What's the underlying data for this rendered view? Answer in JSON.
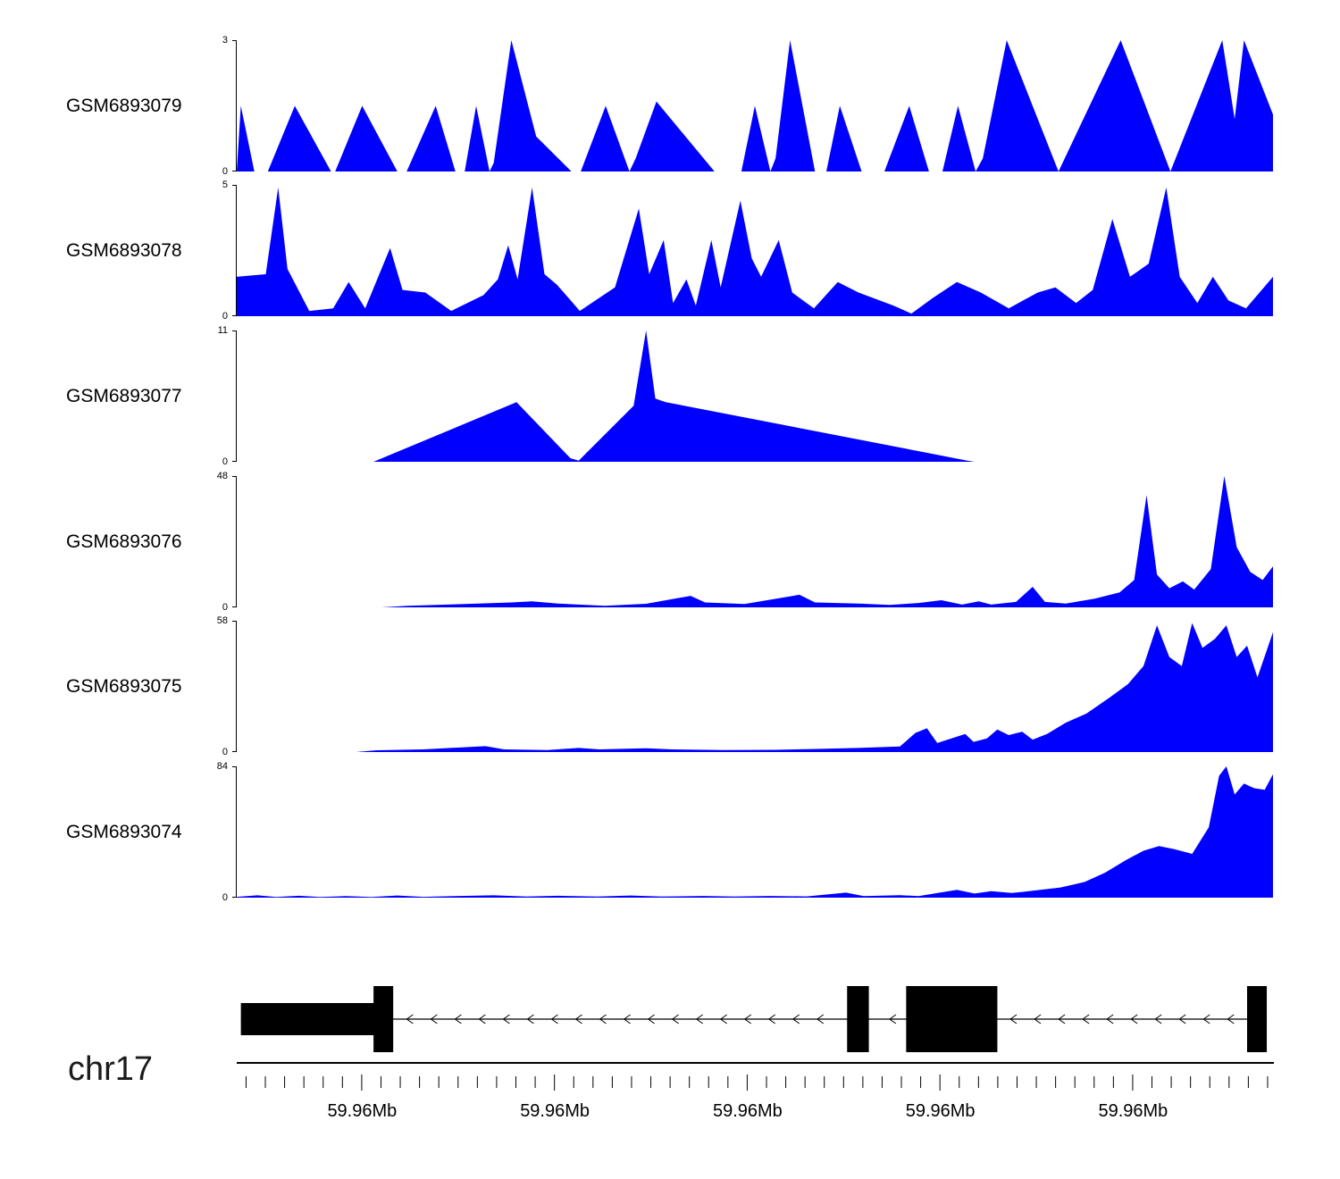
{
  "figure": {
    "chromosome_label": "chr17",
    "background": "#ffffff",
    "coverage_color": "#0000ff",
    "gene_color": "#000000"
  },
  "chart_data": {
    "type": "area",
    "description": "Genome browser read-coverage tracks with gene model and genome axis",
    "chromosome": "chr17",
    "legend_position": "none",
    "grid": false,
    "tracks": [
      {
        "label": "GSM6893079",
        "ylim": [
          0,
          3
        ],
        "points": [
          [
            0.0,
            0
          ],
          [
            0.004,
            1.5
          ],
          [
            0.017,
            0
          ],
          [
            0.03,
            0
          ],
          [
            0.056,
            1.5
          ],
          [
            0.091,
            0
          ],
          [
            0.095,
            0
          ],
          [
            0.121,
            1.5
          ],
          [
            0.155,
            0
          ],
          [
            0.164,
            0
          ],
          [
            0.192,
            1.5
          ],
          [
            0.211,
            0
          ],
          [
            0.22,
            0
          ],
          [
            0.231,
            1.5
          ],
          [
            0.244,
            0
          ],
          [
            0.248,
            0.2
          ],
          [
            0.265,
            3
          ],
          [
            0.289,
            0.8
          ],
          [
            0.323,
            0
          ],
          [
            0.332,
            0
          ],
          [
            0.356,
            1.5
          ],
          [
            0.379,
            0
          ],
          [
            0.385,
            0.3
          ],
          [
            0.405,
            1.6
          ],
          [
            0.461,
            0
          ],
          [
            0.487,
            0
          ],
          [
            0.5,
            1.5
          ],
          [
            0.515,
            0
          ],
          [
            0.52,
            0.3
          ],
          [
            0.534,
            3
          ],
          [
            0.558,
            0
          ],
          [
            0.569,
            0
          ],
          [
            0.582,
            1.5
          ],
          [
            0.603,
            0
          ],
          [
            0.625,
            0
          ],
          [
            0.649,
            1.5
          ],
          [
            0.668,
            0
          ],
          [
            0.681,
            0
          ],
          [
            0.696,
            1.5
          ],
          [
            0.713,
            0
          ],
          [
            0.72,
            0.3
          ],
          [
            0.743,
            3
          ],
          [
            0.793,
            0
          ],
          [
            0.797,
            0.2
          ],
          [
            0.853,
            3
          ],
          [
            0.901,
            0
          ],
          [
            0.951,
            3
          ],
          [
            0.963,
            1.2
          ],
          [
            0.972,
            3
          ],
          [
            1.0,
            1.3
          ]
        ]
      },
      {
        "label": "GSM6893078",
        "ylim": [
          0,
          5
        ],
        "points": [
          [
            0.0,
            1.5
          ],
          [
            0.028,
            1.6
          ],
          [
            0.04,
            4.9
          ],
          [
            0.049,
            1.8
          ],
          [
            0.07,
            0.2
          ],
          [
            0.093,
            0.3
          ],
          [
            0.108,
            1.3
          ],
          [
            0.124,
            0.3
          ],
          [
            0.148,
            2.6
          ],
          [
            0.16,
            1.0
          ],
          [
            0.182,
            0.9
          ],
          [
            0.207,
            0.2
          ],
          [
            0.238,
            0.8
          ],
          [
            0.252,
            1.4
          ],
          [
            0.262,
            2.7
          ],
          [
            0.271,
            1.4
          ],
          [
            0.285,
            4.9
          ],
          [
            0.297,
            1.6
          ],
          [
            0.309,
            1.2
          ],
          [
            0.331,
            0.2
          ],
          [
            0.365,
            1.1
          ],
          [
            0.388,
            4.1
          ],
          [
            0.398,
            1.6
          ],
          [
            0.412,
            2.9
          ],
          [
            0.421,
            0.5
          ],
          [
            0.434,
            1.4
          ],
          [
            0.443,
            0.4
          ],
          [
            0.458,
            2.9
          ],
          [
            0.467,
            1.1
          ],
          [
            0.486,
            4.4
          ],
          [
            0.497,
            2.2
          ],
          [
            0.506,
            1.5
          ],
          [
            0.523,
            2.9
          ],
          [
            0.536,
            0.9
          ],
          [
            0.557,
            0.3
          ],
          [
            0.58,
            1.3
          ],
          [
            0.6,
            0.9
          ],
          [
            0.634,
            0.4
          ],
          [
            0.651,
            0.1
          ],
          [
            0.672,
            0.7
          ],
          [
            0.695,
            1.3
          ],
          [
            0.718,
            0.9
          ],
          [
            0.745,
            0.3
          ],
          [
            0.773,
            0.9
          ],
          [
            0.79,
            1.1
          ],
          [
            0.81,
            0.5
          ],
          [
            0.826,
            1.0
          ],
          [
            0.845,
            3.7
          ],
          [
            0.862,
            1.5
          ],
          [
            0.88,
            2.0
          ],
          [
            0.897,
            4.9
          ],
          [
            0.91,
            1.5
          ],
          [
            0.927,
            0.5
          ],
          [
            0.942,
            1.5
          ],
          [
            0.957,
            0.6
          ],
          [
            0.974,
            0.3
          ],
          [
            1.0,
            1.5
          ]
        ]
      },
      {
        "label": "GSM6893077",
        "ylim": [
          0,
          11
        ],
        "points": [
          [
            0.0,
            0
          ],
          [
            0.132,
            0
          ],
          [
            0.27,
            5.0
          ],
          [
            0.322,
            0.3
          ],
          [
            0.33,
            0.1
          ],
          [
            0.383,
            4.7
          ],
          [
            0.395,
            11
          ],
          [
            0.404,
            5.3
          ],
          [
            0.414,
            5.0
          ],
          [
            0.705,
            0.1
          ],
          [
            0.712,
            0
          ],
          [
            1.0,
            0
          ]
        ]
      },
      {
        "label": "GSM6893076",
        "ylim": [
          0,
          48
        ],
        "points": [
          [
            0.0,
            0
          ],
          [
            0.14,
            0
          ],
          [
            0.165,
            0.6
          ],
          [
            0.22,
            1.2
          ],
          [
            0.265,
            1.8
          ],
          [
            0.285,
            2.2
          ],
          [
            0.31,
            1.4
          ],
          [
            0.355,
            0.6
          ],
          [
            0.395,
            1.3
          ],
          [
            0.438,
            4.2
          ],
          [
            0.452,
            1.8
          ],
          [
            0.49,
            1.2
          ],
          [
            0.543,
            4.6
          ],
          [
            0.558,
            1.8
          ],
          [
            0.6,
            1.4
          ],
          [
            0.63,
            0.9
          ],
          [
            0.658,
            1.6
          ],
          [
            0.68,
            2.6
          ],
          [
            0.7,
            1.0
          ],
          [
            0.716,
            2.2
          ],
          [
            0.728,
            1.0
          ],
          [
            0.752,
            2.0
          ],
          [
            0.768,
            7.5
          ],
          [
            0.78,
            2.0
          ],
          [
            0.8,
            1.4
          ],
          [
            0.828,
            3.2
          ],
          [
            0.852,
            5.5
          ],
          [
            0.866,
            10
          ],
          [
            0.878,
            41
          ],
          [
            0.888,
            12
          ],
          [
            0.9,
            7
          ],
          [
            0.913,
            9.5
          ],
          [
            0.924,
            6.5
          ],
          [
            0.94,
            14
          ],
          [
            0.953,
            48
          ],
          [
            0.965,
            22
          ],
          [
            0.978,
            13
          ],
          [
            0.99,
            10
          ],
          [
            1.0,
            15
          ]
        ]
      },
      {
        "label": "GSM6893075",
        "ylim": [
          0,
          58
        ],
        "points": [
          [
            0.0,
            0
          ],
          [
            0.115,
            0
          ],
          [
            0.135,
            0.8
          ],
          [
            0.18,
            1.2
          ],
          [
            0.24,
            2.6
          ],
          [
            0.258,
            1.2
          ],
          [
            0.3,
            0.9
          ],
          [
            0.33,
            1.8
          ],
          [
            0.35,
            1.2
          ],
          [
            0.395,
            1.7
          ],
          [
            0.42,
            1.2
          ],
          [
            0.47,
            0.9
          ],
          [
            0.52,
            1.0
          ],
          [
            0.56,
            1.4
          ],
          [
            0.6,
            1.8
          ],
          [
            0.64,
            2.5
          ],
          [
            0.655,
            8.5
          ],
          [
            0.666,
            10.5
          ],
          [
            0.676,
            4.0
          ],
          [
            0.693,
            6.5
          ],
          [
            0.703,
            8.0
          ],
          [
            0.711,
            4.5
          ],
          [
            0.724,
            6.0
          ],
          [
            0.734,
            10.0
          ],
          [
            0.745,
            7.5
          ],
          [
            0.758,
            9.0
          ],
          [
            0.768,
            5.5
          ],
          [
            0.782,
            8.0
          ],
          [
            0.8,
            13
          ],
          [
            0.82,
            17
          ],
          [
            0.842,
            24
          ],
          [
            0.86,
            30
          ],
          [
            0.875,
            38
          ],
          [
            0.888,
            56
          ],
          [
            0.9,
            42
          ],
          [
            0.912,
            38
          ],
          [
            0.922,
            57
          ],
          [
            0.932,
            46
          ],
          [
            0.944,
            50
          ],
          [
            0.955,
            56
          ],
          [
            0.965,
            42
          ],
          [
            0.975,
            47
          ],
          [
            0.985,
            33
          ],
          [
            1.0,
            53
          ]
        ]
      },
      {
        "label": "GSM6893074",
        "ylim": [
          0,
          84
        ],
        "points": [
          [
            0.0,
            0.5
          ],
          [
            0.02,
            1.5
          ],
          [
            0.038,
            0.4
          ],
          [
            0.06,
            1.2
          ],
          [
            0.08,
            0.4
          ],
          [
            0.105,
            1.0
          ],
          [
            0.13,
            0.4
          ],
          [
            0.155,
            1.4
          ],
          [
            0.18,
            0.5
          ],
          [
            0.21,
            1.0
          ],
          [
            0.248,
            1.5
          ],
          [
            0.28,
            0.7
          ],
          [
            0.31,
            1.2
          ],
          [
            0.348,
            0.7
          ],
          [
            0.38,
            1.4
          ],
          [
            0.41,
            0.7
          ],
          [
            0.45,
            1.1
          ],
          [
            0.48,
            0.7
          ],
          [
            0.515,
            1.1
          ],
          [
            0.55,
            0.8
          ],
          [
            0.588,
            3.2
          ],
          [
            0.605,
            1.0
          ],
          [
            0.64,
            1.6
          ],
          [
            0.658,
            1.0
          ],
          [
            0.695,
            5.0
          ],
          [
            0.712,
            2.6
          ],
          [
            0.728,
            4.2
          ],
          [
            0.748,
            3.0
          ],
          [
            0.768,
            4.4
          ],
          [
            0.795,
            6.5
          ],
          [
            0.818,
            10
          ],
          [
            0.838,
            16
          ],
          [
            0.858,
            24
          ],
          [
            0.875,
            30
          ],
          [
            0.89,
            33
          ],
          [
            0.905,
            31
          ],
          [
            0.922,
            28
          ],
          [
            0.938,
            45
          ],
          [
            0.948,
            78
          ],
          [
            0.955,
            84
          ],
          [
            0.963,
            66
          ],
          [
            0.972,
            73
          ],
          [
            0.982,
            70
          ],
          [
            0.992,
            69
          ],
          [
            1.0,
            79
          ]
        ]
      }
    ],
    "gene_model": {
      "strand_direction": "left",
      "intron_line_span": [
        0.004,
        0.994
      ],
      "exons": [
        {
          "start": 0.004,
          "end": 0.134,
          "type": "utr"
        },
        {
          "start": 0.132,
          "end": 0.151,
          "type": "cds"
        },
        {
          "start": 0.589,
          "end": 0.61,
          "type": "cds"
        },
        {
          "start": 0.646,
          "end": 0.734,
          "type": "cds"
        },
        {
          "start": 0.975,
          "end": 0.994,
          "type": "cds"
        }
      ]
    },
    "axis": {
      "tick_labels": [
        {
          "pos": 0.121,
          "label": "59.96Mb"
        },
        {
          "pos": 0.307,
          "label": "59.96Mb"
        },
        {
          "pos": 0.493,
          "label": "59.96Mb"
        },
        {
          "pos": 0.679,
          "label": "59.96Mb"
        },
        {
          "pos": 0.865,
          "label": "59.96Mb"
        }
      ],
      "minor_tick_start": 0.009,
      "minor_tick_step": 0.0186
    }
  }
}
